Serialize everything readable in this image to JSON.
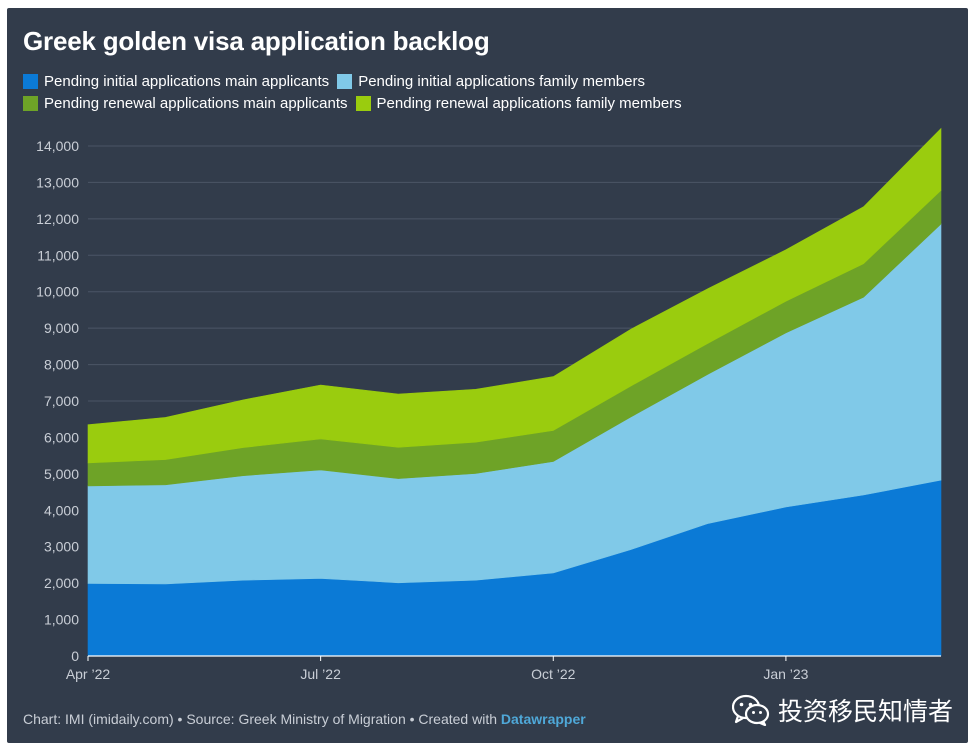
{
  "title": "Greek golden visa application backlog",
  "legend": [
    {
      "label": "Pending initial applications main applicants",
      "color": "#0b7ad6"
    },
    {
      "label": "Pending initial applications family members",
      "color": "#80c9e8"
    },
    {
      "label": "Pending renewal applications main applicants",
      "color": "#6ea327"
    },
    {
      "label": "Pending renewal applications family members",
      "color": "#9acc0e"
    }
  ],
  "footer": {
    "text": "Chart: IMI (imidaily.com) • Source: Greek Ministry of Migration • Created with ",
    "link": "Datawrapper"
  },
  "watermark": {
    "text": "投资移民知情者",
    "icon": "wechat-icon"
  },
  "chart_data": {
    "type": "area",
    "stacked": true,
    "title": "Greek golden visa application backlog",
    "x": [
      "Apr 2022",
      "May 2022",
      "Jun 2022",
      "Jul 2022",
      "Aug 2022",
      "Sep 2022",
      "Oct 2022",
      "Nov 2022",
      "Dec 2022",
      "Jan 2023",
      "Feb 2023",
      "Mar 2023"
    ],
    "x_ticks": [
      "Apr ’22",
      "Jul ’22",
      "Oct ’22",
      "Jan ’23"
    ],
    "x_tick_index": [
      0,
      3,
      6,
      9
    ],
    "y_ticks": [
      "0",
      "1,000",
      "2,000",
      "3,000",
      "4,000",
      "5,000",
      "6,000",
      "7,000",
      "8,000",
      "9,000",
      "10,000",
      "11,000",
      "12,000",
      "13,000",
      "14,000"
    ],
    "ylim": [
      0,
      14000
    ],
    "grid": true,
    "legend_position": "top-left",
    "series": [
      {
        "name": "Pending initial applications main applicants",
        "color": "#0b7ad6",
        "values": [
          1990,
          1980,
          2080,
          2130,
          2010,
          2080,
          2280,
          2920,
          3640,
          4090,
          4420,
          4830
        ]
      },
      {
        "name": "Pending initial applications family members",
        "color": "#80c9e8",
        "values": [
          2680,
          2720,
          2870,
          2980,
          2860,
          2930,
          3060,
          3640,
          4100,
          4780,
          5430,
          7030
        ]
      },
      {
        "name": "Pending renewal applications main applicants",
        "color": "#6ea327",
        "values": [
          630,
          690,
          770,
          850,
          860,
          860,
          850,
          850,
          850,
          870,
          920,
          920
        ]
      },
      {
        "name": "Pending renewal applications family members",
        "color": "#9acc0e",
        "values": [
          1050,
          1160,
          1310,
          1480,
          1460,
          1450,
          1480,
          1560,
          1500,
          1410,
          1560,
          1700
        ]
      }
    ]
  }
}
